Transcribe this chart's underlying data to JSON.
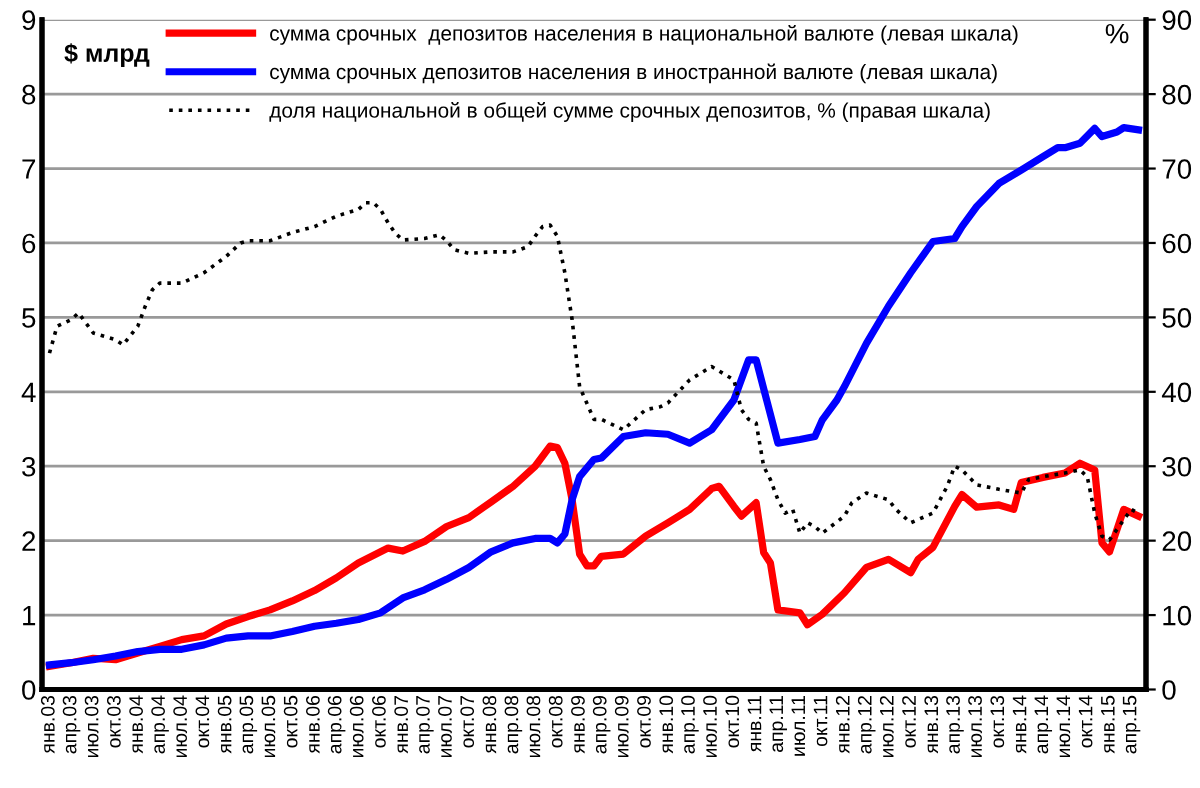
{
  "chart_data": {
    "type": "line",
    "ylabel": "$ млрд",
    "y2label": "%",
    "xlim": [
      "2002-12",
      "2015-06"
    ],
    "ylim": [
      0,
      9
    ],
    "yticks": [
      0,
      1,
      2,
      3,
      4,
      5,
      6,
      7,
      8,
      9
    ],
    "y2lim": [
      0,
      90
    ],
    "y2ticks": [
      0,
      10,
      20,
      30,
      40,
      50,
      60,
      70,
      80,
      90
    ],
    "xticks": [
      {
        "value": "2003-01",
        "label": "янв.03"
      },
      {
        "value": "2003-04",
        "label": "апр.03"
      },
      {
        "value": "2003-07",
        "label": "июл.03"
      },
      {
        "value": "2003-10",
        "label": "окт.03"
      },
      {
        "value": "2004-01",
        "label": "янв.04"
      },
      {
        "value": "2004-04",
        "label": "апр.04"
      },
      {
        "value": "2004-07",
        "label": "июл.04"
      },
      {
        "value": "2004-10",
        "label": "окт.04"
      },
      {
        "value": "2005-01",
        "label": "янв.05"
      },
      {
        "value": "2005-04",
        "label": "апр.05"
      },
      {
        "value": "2005-07",
        "label": "июл.05"
      },
      {
        "value": "2005-10",
        "label": "окт.05"
      },
      {
        "value": "2006-01",
        "label": "янв.06"
      },
      {
        "value": "2006-04",
        "label": "апр.06"
      },
      {
        "value": "2006-07",
        "label": "июл.06"
      },
      {
        "value": "2006-10",
        "label": "окт.06"
      },
      {
        "value": "2007-01",
        "label": "янв.07"
      },
      {
        "value": "2007-04",
        "label": "апр.07"
      },
      {
        "value": "2007-07",
        "label": "июл.07"
      },
      {
        "value": "2007-10",
        "label": "окт.07"
      },
      {
        "value": "2008-01",
        "label": "янв.08"
      },
      {
        "value": "2008-04",
        "label": "апр.08"
      },
      {
        "value": "2008-07",
        "label": "июл.08"
      },
      {
        "value": "2008-10",
        "label": "окт.08"
      },
      {
        "value": "2009-01",
        "label": "янв.09"
      },
      {
        "value": "2009-04",
        "label": "апр.09"
      },
      {
        "value": "2009-07",
        "label": "июл.09"
      },
      {
        "value": "2009-10",
        "label": "окт.09"
      },
      {
        "value": "2010-01",
        "label": "янв.10"
      },
      {
        "value": "2010-04",
        "label": "апр.10"
      },
      {
        "value": "2010-07",
        "label": "июл.10"
      },
      {
        "value": "2010-10",
        "label": "окт.10"
      },
      {
        "value": "2011-01",
        "label": "янв.11"
      },
      {
        "value": "2011-04",
        "label": "апр.11"
      },
      {
        "value": "2011-07",
        "label": "июл.11"
      },
      {
        "value": "2011-10",
        "label": "окт.11"
      },
      {
        "value": "2012-01",
        "label": "янв.12"
      },
      {
        "value": "2012-04",
        "label": "апр.12"
      },
      {
        "value": "2012-07",
        "label": "июл.12"
      },
      {
        "value": "2012-10",
        "label": "окт.12"
      },
      {
        "value": "2013-01",
        "label": "янв.13"
      },
      {
        "value": "2013-04",
        "label": "апр.13"
      },
      {
        "value": "2013-07",
        "label": "июл.13"
      },
      {
        "value": "2013-10",
        "label": "окт.13"
      },
      {
        "value": "2014-01",
        "label": "янв.14"
      },
      {
        "value": "2014-04",
        "label": "апр.14"
      },
      {
        "value": "2014-07",
        "label": "июл.14"
      },
      {
        "value": "2014-10",
        "label": "окт.14"
      },
      {
        "value": "2015-01",
        "label": "янв.15"
      },
      {
        "value": "2015-04",
        "label": "апр.15"
      }
    ],
    "grid": "y",
    "legend": "top",
    "series": [
      {
        "name": "сумма срочных  депозитов населения в национальной валюте (левая шкала)",
        "color": "#ff0000",
        "line_style": "solid",
        "x": [
          "2003-01",
          "2003-04",
          "2003-07",
          "2003-10",
          "2004-01",
          "2004-04",
          "2004-07",
          "2004-10",
          "2005-01",
          "2005-04",
          "2005-07",
          "2005-10",
          "2006-01",
          "2006-04",
          "2006-07",
          "2006-10",
          "2006-11",
          "2007-01",
          "2007-04",
          "2007-07",
          "2007-10",
          "2008-01",
          "2008-04",
          "2008-07",
          "2008-09",
          "2008-10",
          "2008-11",
          "2008-12",
          "2009-01",
          "2009-02",
          "2009-03",
          "2009-04",
          "2009-07",
          "2009-10",
          "2010-01",
          "2010-04",
          "2010-07",
          "2010-08",
          "2010-10",
          "2010-11",
          "2011-01",
          "2011-02",
          "2011-03",
          "2011-04",
          "2011-07",
          "2011-08",
          "2011-10",
          "2012-01",
          "2012-04",
          "2012-07",
          "2012-10",
          "2012-11",
          "2013-01",
          "2013-04",
          "2013-05",
          "2013-07",
          "2013-10",
          "2013-12",
          "2014-01",
          "2014-04",
          "2014-07",
          "2014-09",
          "2014-11",
          "2014-12",
          "2015-01",
          "2015-03",
          "2015-05"
        ],
        "values": [
          0.31,
          0.36,
          0.42,
          0.4,
          0.49,
          0.58,
          0.67,
          0.72,
          0.88,
          0.98,
          1.07,
          1.19,
          1.33,
          1.5,
          1.7,
          1.85,
          1.9,
          1.86,
          1.99,
          2.19,
          2.31,
          2.52,
          2.73,
          3.0,
          3.27,
          3.25,
          3.04,
          2.55,
          1.82,
          1.66,
          1.66,
          1.79,
          1.82,
          2.06,
          2.24,
          2.42,
          2.7,
          2.73,
          2.46,
          2.33,
          2.51,
          1.84,
          1.7,
          1.07,
          1.03,
          0.87,
          1.01,
          1.3,
          1.64,
          1.75,
          1.57,
          1.75,
          1.91,
          2.46,
          2.62,
          2.45,
          2.48,
          2.42,
          2.78,
          2.85,
          2.91,
          3.04,
          2.95,
          1.97,
          1.85,
          2.42,
          2.33
        ]
      },
      {
        "name": "сумма срочных депозитов населения в иностранной валюте (левая шкала)",
        "color": "#0000ff",
        "line_style": "solid",
        "x": [
          "2003-01",
          "2003-04",
          "2003-07",
          "2003-10",
          "2004-01",
          "2004-04",
          "2004-07",
          "2004-10",
          "2005-01",
          "2005-04",
          "2005-07",
          "2005-10",
          "2006-01",
          "2006-04",
          "2006-07",
          "2006-10",
          "2007-01",
          "2007-04",
          "2007-07",
          "2007-10",
          "2008-01",
          "2008-04",
          "2008-07",
          "2008-09",
          "2008-10",
          "2008-11",
          "2008-12",
          "2009-01",
          "2009-03",
          "2009-04",
          "2009-07",
          "2009-10",
          "2010-01",
          "2010-04",
          "2010-07",
          "2010-10",
          "2010-12",
          "2011-01",
          "2011-04",
          "2011-07",
          "2011-09",
          "2011-10",
          "2011-12",
          "2012-01",
          "2012-04",
          "2012-07",
          "2012-10",
          "2013-01",
          "2013-04",
          "2013-05",
          "2013-07",
          "2013-10",
          "2014-01",
          "2014-04",
          "2014-06",
          "2014-07",
          "2014-09",
          "2014-11",
          "2014-12",
          "2015-02",
          "2015-03",
          "2015-05"
        ],
        "values": [
          0.33,
          0.36,
          0.4,
          0.45,
          0.51,
          0.54,
          0.54,
          0.6,
          0.69,
          0.72,
          0.72,
          0.78,
          0.85,
          0.89,
          0.94,
          1.03,
          1.23,
          1.34,
          1.48,
          1.64,
          1.85,
          1.97,
          2.03,
          2.03,
          1.97,
          2.09,
          2.55,
          2.86,
          3.09,
          3.11,
          3.4,
          3.45,
          3.43,
          3.31,
          3.49,
          3.89,
          4.43,
          4.43,
          3.31,
          3.36,
          3.4,
          3.62,
          3.89,
          4.07,
          4.65,
          5.15,
          5.6,
          6.02,
          6.06,
          6.22,
          6.49,
          6.8,
          6.98,
          7.16,
          7.28,
          7.28,
          7.34,
          7.54,
          7.43,
          7.49,
          7.55,
          7.52
        ]
      },
      {
        "name": "доля национальной в общей сумме срочных депозитов, % (правая шкала)",
        "color": "#000000",
        "line_style": "dotted",
        "axis": "y2",
        "x": [
          "2003-01",
          "2003-02",
          "2003-04",
          "2003-05",
          "2003-07",
          "2003-10",
          "2003-11",
          "2004-01",
          "2004-02",
          "2004-03",
          "2004-04",
          "2004-07",
          "2004-10",
          "2005-01",
          "2005-03",
          "2005-04",
          "2005-07",
          "2005-10",
          "2006-01",
          "2006-04",
          "2006-07",
          "2006-08",
          "2006-09",
          "2006-10",
          "2006-11",
          "2006-12",
          "2007-01",
          "2007-04",
          "2007-06",
          "2007-07",
          "2007-08",
          "2007-10",
          "2008-01",
          "2008-04",
          "2008-06",
          "2008-07",
          "2008-08",
          "2008-09",
          "2008-10",
          "2008-11",
          "2008-12",
          "2009-01",
          "2009-03",
          "2009-04",
          "2009-07",
          "2009-10",
          "2009-12",
          "2010-01",
          "2010-04",
          "2010-07",
          "2010-10",
          "2010-11",
          "2010-12",
          "2011-01",
          "2011-02",
          "2011-03",
          "2011-04",
          "2011-05",
          "2011-06",
          "2011-07",
          "2011-08",
          "2011-09",
          "2011-10",
          "2012-01",
          "2012-02",
          "2012-04",
          "2012-07",
          "2012-08",
          "2012-10",
          "2013-01",
          "2013-03",
          "2013-04",
          "2013-05",
          "2013-07",
          "2013-10",
          "2014-01",
          "2014-02",
          "2014-04",
          "2014-07",
          "2014-09",
          "2014-10",
          "2014-11",
          "2014-12",
          "2015-01",
          "2015-03",
          "2015-04",
          "2015-05"
        ],
        "values": [
          45.2,
          48.8,
          49.7,
          50.6,
          47.9,
          47.0,
          46.3,
          48.8,
          51.5,
          53.7,
          54.6,
          54.6,
          56.0,
          58.2,
          60.0,
          60.3,
          60.3,
          61.4,
          62.2,
          63.6,
          64.5,
          65.4,
          65.4,
          64.5,
          62.7,
          61.3,
          60.4,
          60.6,
          61.1,
          60.3,
          59.1,
          58.6,
          58.8,
          58.8,
          59.5,
          60.9,
          62.2,
          62.4,
          60.9,
          56.0,
          49.7,
          40.7,
          36.3,
          36.3,
          34.9,
          37.6,
          38.0,
          38.5,
          41.6,
          43.4,
          41.6,
          37.6,
          36.3,
          35.8,
          30.0,
          28.2,
          25.5,
          23.7,
          24.2,
          21.0,
          22.4,
          21.9,
          21.0,
          23.3,
          25.1,
          26.4,
          25.5,
          24.2,
          22.4,
          23.7,
          27.3,
          30.0,
          29.5,
          27.5,
          26.9,
          26.4,
          28.2,
          28.6,
          29.1,
          29.5,
          28.6,
          23.7,
          20.6,
          20.1,
          22.8,
          24.2,
          23.7
        ]
      }
    ]
  }
}
